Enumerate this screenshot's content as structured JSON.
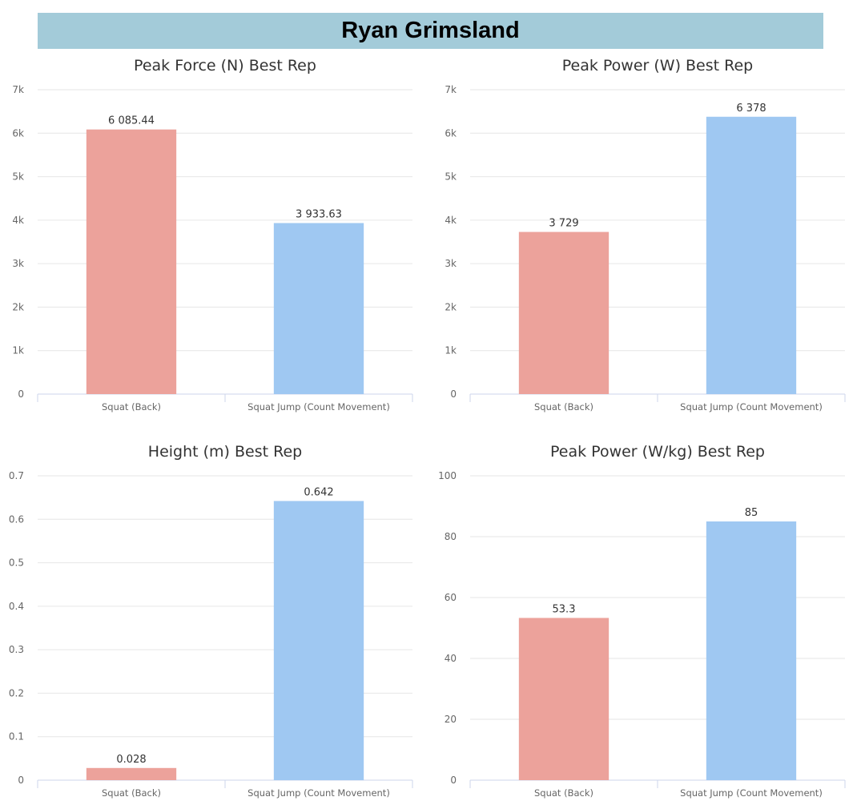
{
  "header": {
    "title": "Ryan Grimsland"
  },
  "colors": {
    "bar_1": "#eca29b",
    "bar_2": "#9fc8f2",
    "grid": "#e6e6e6",
    "axis": "#ccd6eb",
    "text": "#333333",
    "tick": "#666666",
    "banner": "#a3cbd9"
  },
  "chart_data": [
    {
      "type": "bar",
      "title": "Peak Force (N) Best Rep",
      "categories": [
        "Squat (Back)",
        "Squat Jump (Count Movement)"
      ],
      "values": [
        6085.44,
        3933.63
      ],
      "value_labels": [
        "6 085.44",
        "3 933.63"
      ],
      "yticks": [
        0,
        1000,
        2000,
        3000,
        4000,
        5000,
        6000,
        7000
      ],
      "ytick_labels": [
        "0",
        "1k",
        "2k",
        "3k",
        "4k",
        "5k",
        "6k",
        "7k"
      ],
      "ylim": [
        0,
        7000
      ],
      "xlabel": "",
      "ylabel": "",
      "grid": true
    },
    {
      "type": "bar",
      "title": "Peak Power (W) Best Rep",
      "categories": [
        "Squat (Back)",
        "Squat Jump (Count Movement)"
      ],
      "values": [
        3729,
        6378
      ],
      "value_labels": [
        "3 729",
        "6 378"
      ],
      "yticks": [
        0,
        1000,
        2000,
        3000,
        4000,
        5000,
        6000,
        7000
      ],
      "ytick_labels": [
        "0",
        "1k",
        "2k",
        "3k",
        "4k",
        "5k",
        "6k",
        "7k"
      ],
      "ylim": [
        0,
        7000
      ],
      "xlabel": "",
      "ylabel": "",
      "grid": true
    },
    {
      "type": "bar",
      "title": "Height (m) Best Rep",
      "categories": [
        "Squat (Back)",
        "Squat Jump (Count Movement)"
      ],
      "values": [
        0.028,
        0.642
      ],
      "value_labels": [
        "0.028",
        "0.642"
      ],
      "yticks": [
        0,
        0.1,
        0.2,
        0.3,
        0.4,
        0.5,
        0.6,
        0.7
      ],
      "ytick_labels": [
        "0",
        "0.1",
        "0.2",
        "0.3",
        "0.4",
        "0.5",
        "0.6",
        "0.7"
      ],
      "ylim": [
        0,
        0.7
      ],
      "xlabel": "",
      "ylabel": "",
      "grid": true
    },
    {
      "type": "bar",
      "title": "Peak Power (W/kg) Best Rep",
      "categories": [
        "Squat (Back)",
        "Squat Jump (Count Movement)"
      ],
      "values": [
        53.3,
        85
      ],
      "value_labels": [
        "53.3",
        "85"
      ],
      "yticks": [
        0,
        20,
        40,
        60,
        80,
        100
      ],
      "ytick_labels": [
        "0",
        "20",
        "40",
        "60",
        "80",
        "100"
      ],
      "ylim": [
        0,
        100
      ],
      "xlabel": "",
      "ylabel": "",
      "grid": true
    }
  ]
}
